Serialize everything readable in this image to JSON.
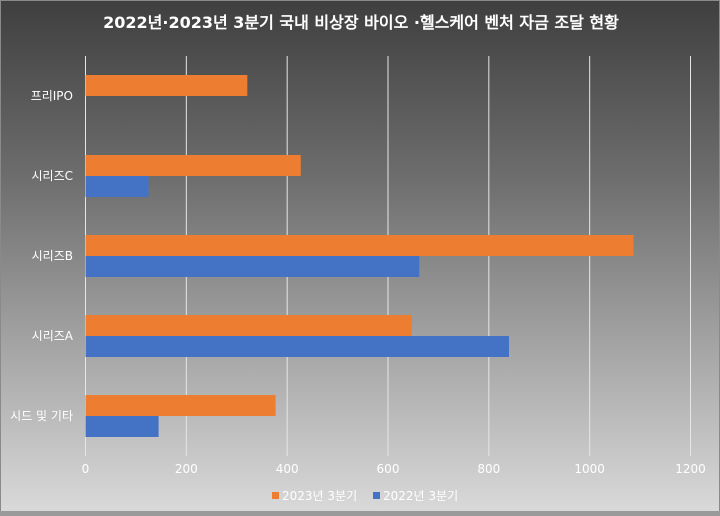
{
  "chart_data": {
    "type": "bar",
    "orientation": "horizontal",
    "title": "2022년·2023년 3분기 국내 비상장 바이오 ·헬스케어 벤처 자금 조달 현황",
    "categories": [
      "프리IPO",
      "시리즈C",
      "시리즈B",
      "시리즈A",
      "시드 및 기타"
    ],
    "series": [
      {
        "name": "2023년 3분기",
        "color": "#ed7d31",
        "values": [
          321,
          427,
          1087,
          647,
          377
        ]
      },
      {
        "name": "2022년 3분기",
        "color": "#4472c4",
        "values": [
          null,
          125,
          662,
          840,
          145
        ]
      }
    ],
    "xlim": [
      0,
      1200
    ],
    "xticks": [
      "0",
      "200",
      "400",
      "600",
      "800",
      "1000",
      "1200"
    ],
    "grid": true,
    "legend": "bottom"
  }
}
